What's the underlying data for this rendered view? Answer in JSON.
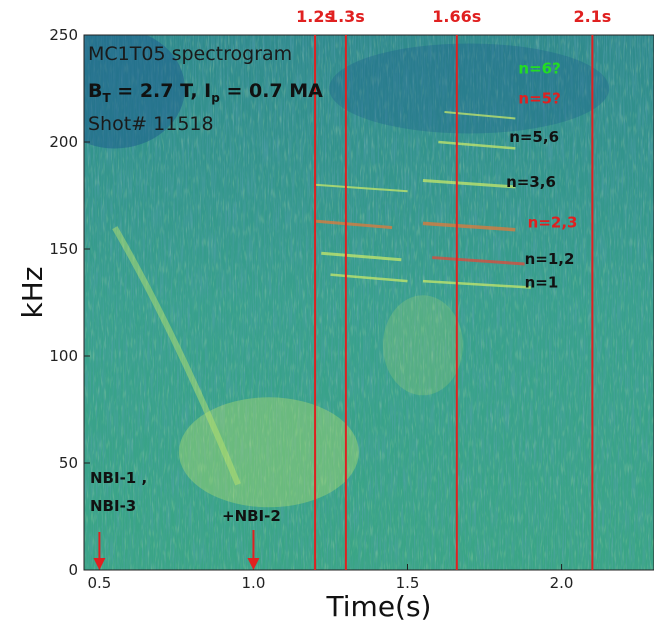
{
  "chart_data": {
    "type": "heatmap",
    "title": "MC1T05  spectrogram",
    "subtitle": "B",
    "subtitle_sub_T": "T",
    "subtitle_mid": " = 2.7 T,  I",
    "subtitle_sub_p": "p",
    "subtitle_end": " = 0.7 MA",
    "shot_label": "Shot# 11518",
    "xlabel": "Time(s)",
    "ylabel": "kHz",
    "xlim": [
      0.45,
      2.3
    ],
    "ylim": [
      0,
      250
    ],
    "xticks": [
      {
        "value": 0.5,
        "label": "0.5"
      },
      {
        "value": 1.0,
        "label": "1.0"
      },
      {
        "value": 1.5,
        "label": "1.5"
      },
      {
        "value": 2.0,
        "label": "2.0"
      }
    ],
    "yticks": [
      {
        "value": 0,
        "label": "0"
      },
      {
        "value": 50,
        "label": "50"
      },
      {
        "value": 100,
        "label": "100"
      },
      {
        "value": 150,
        "label": "150"
      },
      {
        "value": 200,
        "label": "200"
      },
      {
        "value": 250,
        "label": "250"
      }
    ],
    "time_markers": [
      {
        "t": 1.2,
        "label": "1.2s"
      },
      {
        "t": 1.3,
        "label": "1.3s"
      },
      {
        "t": 1.66,
        "label": "1.66s"
      },
      {
        "t": 2.1,
        "label": "2.1s"
      }
    ],
    "mode_labels": [
      {
        "text": "n=6?",
        "t": 1.86,
        "f": 232,
        "color": "#22dd22"
      },
      {
        "text": "n=5?",
        "t": 1.86,
        "f": 218,
        "color": "#e02020"
      },
      {
        "text": "n=5,6",
        "t": 1.83,
        "f": 200,
        "color": "#111111"
      },
      {
        "text": "n=3,6",
        "t": 1.82,
        "f": 179,
        "color": "#111111"
      },
      {
        "text": "n=2,3",
        "t": 1.89,
        "f": 160,
        "color": "#e02020"
      },
      {
        "text": "n=1,2",
        "t": 1.88,
        "f": 143,
        "color": "#111111"
      },
      {
        "text": "n=1",
        "t": 1.88,
        "f": 132,
        "color": "#111111"
      }
    ],
    "nbi_events": [
      {
        "lines": [
          "NBI-1 ,",
          "NBI-3"
        ],
        "t": 0.5
      },
      {
        "lines": [
          "+NBI-2"
        ],
        "t": 1.0
      }
    ],
    "colors": {
      "background": "#3a9e8c",
      "dark": "#1e5f8e",
      "bright": "#c6e86a",
      "marker": "#e02020"
    }
  }
}
